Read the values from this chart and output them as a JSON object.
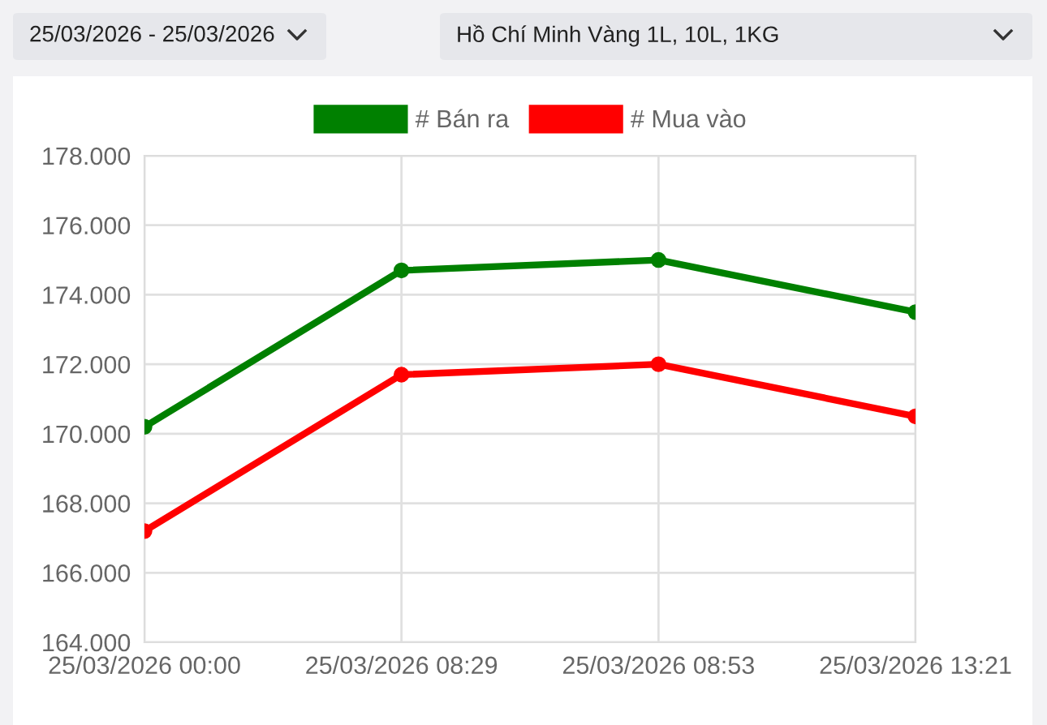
{
  "chart_data": {
    "type": "line",
    "categories": [
      "25/03/2026 00:00",
      "25/03/2026 08:29",
      "25/03/2026 08:53",
      "25/03/2026 13:21"
    ],
    "series": [
      {
        "name": "# Bán ra",
        "color": "#008000",
        "values": [
          170.2,
          174.7,
          175.0,
          173.5
        ]
      },
      {
        "name": "# Mua vào",
        "color": "#ff0000",
        "values": [
          167.2,
          171.7,
          172.0,
          170.5
        ]
      }
    ],
    "ylim": [
      164,
      178
    ],
    "yticks": [
      {
        "value": 164,
        "label": "164.000"
      },
      {
        "value": 166,
        "label": "166.000"
      },
      {
        "value": 168,
        "label": "168.000"
      },
      {
        "value": 170,
        "label": "170.000"
      },
      {
        "value": 172,
        "label": "172.000"
      },
      {
        "value": 174,
        "label": "174.000"
      },
      {
        "value": 176,
        "label": "176.000"
      },
      {
        "value": 178,
        "label": "178.000"
      }
    ],
    "grid": true,
    "legend": "top",
    "marker": "circle",
    "line_style": "solid",
    "annotations": [
      "25/03/2026 - 25/03/2026",
      "Hồ Chí Minh Vàng 1L, 10L, 1KG"
    ]
  }
}
